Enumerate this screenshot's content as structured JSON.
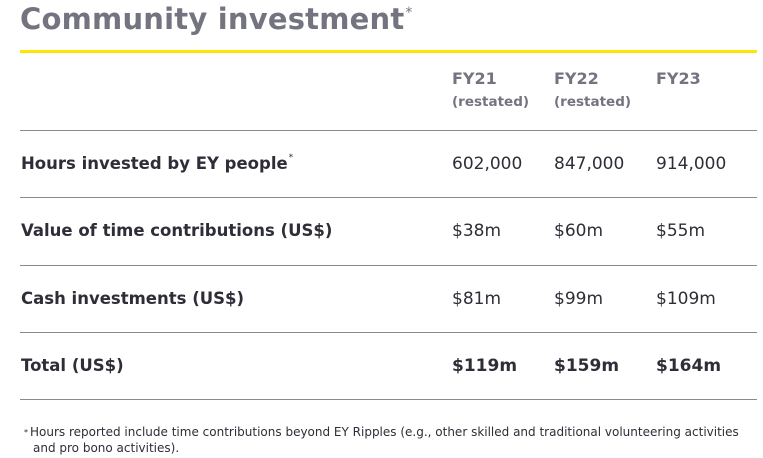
{
  "title": "Community investment",
  "title_mark": "*",
  "columns": [
    {
      "year": "FY21",
      "note": "(restated)"
    },
    {
      "year": "FY22",
      "note": "(restated)"
    },
    {
      "year": "FY23",
      "note": ""
    }
  ],
  "rows": [
    {
      "label": "Hours invested by EY people",
      "mark": "*",
      "values": [
        "602,000",
        "847,000",
        "914,000"
      ]
    },
    {
      "label": "Value of time contributions (US$)",
      "mark": "",
      "values": [
        "$38m",
        "$60m",
        "$55m"
      ]
    },
    {
      "label": "Cash investments (US$)",
      "mark": "",
      "values": [
        "$81m",
        "$99m",
        "$109m"
      ]
    },
    {
      "label": "Total (US$)",
      "mark": "",
      "values": [
        "$119m",
        "$159m",
        "$164m"
      ]
    }
  ],
  "footnote": {
    "mark": "*",
    "line1": "Hours reported include time contributions beyond EY Ripples (e.g., other skilled and traditional volunteering activities",
    "line2": "and pro bono activities)."
  },
  "colors": {
    "accent": "#ffe600",
    "title": "#747480",
    "text": "#2e2e38"
  }
}
